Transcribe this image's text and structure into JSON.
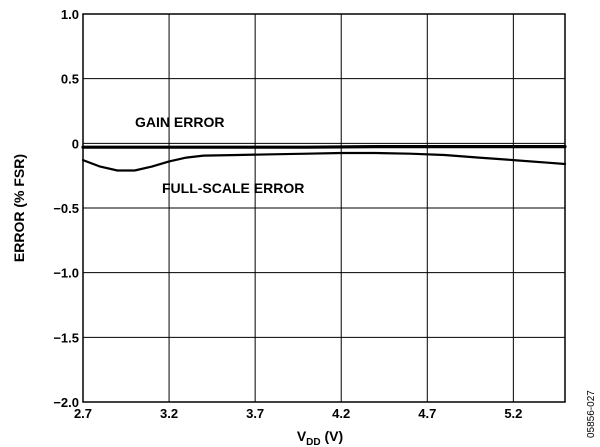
{
  "chart_data": {
    "type": "line",
    "xlabel_main": "V",
    "xlabel_sub": "DD",
    "xlabel_unit": " (V)",
    "ylabel": "ERROR (% FSR)",
    "xlim": [
      2.7,
      5.5
    ],
    "ylim": [
      -2.0,
      1.0
    ],
    "x_ticks": [
      2.7,
      3.2,
      3.7,
      4.2,
      4.7,
      5.2
    ],
    "x_tick_labels": [
      "2.7",
      "3.2",
      "3.7",
      "4.2",
      "4.7",
      "5.2"
    ],
    "y_ticks": [
      1.0,
      0.5,
      0,
      -0.5,
      -1.0,
      -1.5,
      -2.0
    ],
    "y_tick_labels": [
      "1.0",
      "0.5",
      "0",
      "−0.5",
      "−1.0",
      "−1.5",
      "−2.0"
    ],
    "grid": true,
    "series": [
      {
        "name": "GAIN ERROR",
        "x": [
          2.7,
          3.0,
          3.5,
          4.0,
          4.4,
          4.7,
          5.0,
          5.5
        ],
        "y": [
          -0.03,
          -0.03,
          -0.03,
          -0.03,
          -0.025,
          -0.025,
          -0.025,
          -0.025
        ]
      },
      {
        "name": "FULL-SCALE ERROR",
        "x": [
          2.7,
          2.8,
          2.9,
          3.0,
          3.1,
          3.2,
          3.3,
          3.4,
          3.6,
          3.8,
          4.0,
          4.2,
          4.4,
          4.6,
          4.8,
          5.0,
          5.2,
          5.4,
          5.5
        ],
        "y": [
          -0.13,
          -0.18,
          -0.21,
          -0.21,
          -0.18,
          -0.14,
          -0.11,
          -0.095,
          -0.09,
          -0.085,
          -0.08,
          -0.075,
          -0.075,
          -0.08,
          -0.09,
          -0.11,
          -0.13,
          -0.15,
          -0.16
        ]
      }
    ],
    "annotations": [
      "GAIN ERROR",
      "FULL-SCALE ERROR"
    ]
  },
  "figure_id": "05856-027"
}
